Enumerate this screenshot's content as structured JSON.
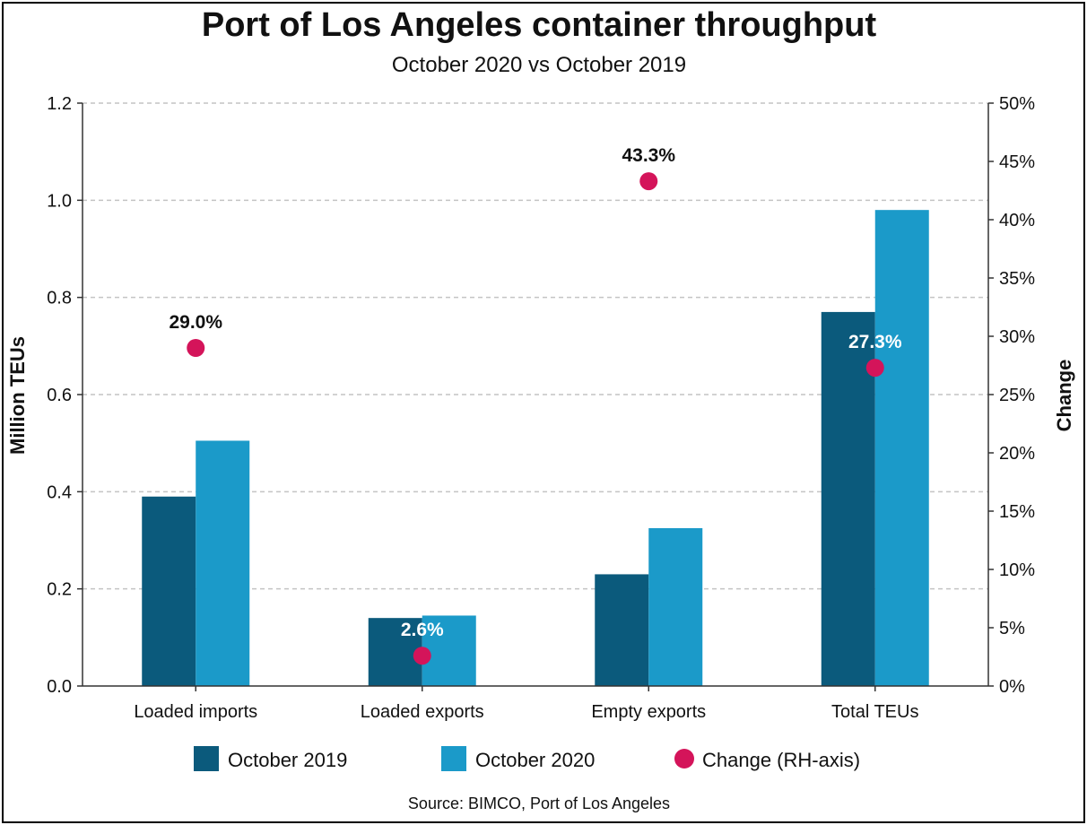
{
  "chart_data": {
    "type": "bar",
    "title": "Port of Los Angeles container throughput",
    "subtitle": "October 2020 vs October 2019",
    "categories": [
      "Loaded imports",
      "Loaded exports",
      "Empty exports",
      "Total TEUs"
    ],
    "series": [
      {
        "name": "October 2019",
        "color": "#0b5a7c",
        "values": [
          0.39,
          0.14,
          0.23,
          0.77
        ]
      },
      {
        "name": "October 2020",
        "color": "#1b9ac9",
        "values": [
          0.505,
          0.145,
          0.325,
          0.98
        ]
      }
    ],
    "change_series": {
      "name": "Change (RH-axis)",
      "color": "#d4145a",
      "values": [
        29.0,
        2.6,
        43.3,
        27.3
      ],
      "labels": [
        "29.0%",
        "2.6%",
        "43.3%",
        "27.3%"
      ],
      "label_colors": [
        "#111111",
        "#ffffff",
        "#111111",
        "#ffffff"
      ]
    },
    "ylabel": "Million TEUs",
    "y2label": "Change",
    "ylim": [
      0,
      1.2
    ],
    "y2lim": [
      0,
      50
    ],
    "yticks": [
      "0.0",
      "0.2",
      "0.4",
      "0.6",
      "0.8",
      "1.0",
      "1.2"
    ],
    "y2ticks": [
      "0%",
      "5%",
      "10%",
      "15%",
      "20%",
      "25%",
      "30%",
      "35%",
      "40%",
      "45%",
      "50%"
    ],
    "grid": true,
    "legend": [
      "October 2019",
      "October 2020",
      "Change (RH-axis)"
    ],
    "legend_position": "bottom",
    "source": "Source: BIMCO, Port of Los Angeles"
  }
}
